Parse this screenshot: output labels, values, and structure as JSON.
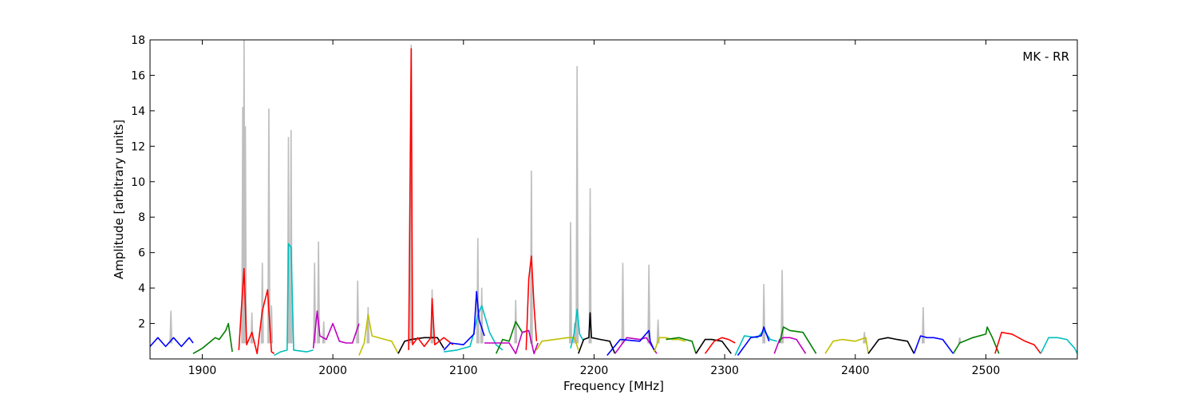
{
  "chart_data": {
    "type": "line",
    "title": "",
    "annotation": "MK - RR",
    "annotation_placement": "top-right",
    "xlabel": "Frequency [MHz]",
    "ylabel": "Amplitude [arbitrary units]",
    "xlim": [
      1860,
      2570
    ],
    "ylim": [
      0,
      18
    ],
    "xticks": [
      1900,
      2000,
      2100,
      2200,
      2300,
      2400,
      2500
    ],
    "yticks": [
      2,
      4,
      6,
      8,
      10,
      12,
      14,
      16,
      18
    ],
    "grid": false,
    "background_series": {
      "color": "#bfbfbf",
      "spikes": [
        {
          "x": 1876,
          "y": 2.7
        },
        {
          "x": 1931,
          "y": 14.2
        },
        {
          "x": 1932,
          "y": 18.0
        },
        {
          "x": 1933,
          "y": 13.1
        },
        {
          "x": 1938,
          "y": 2.6
        },
        {
          "x": 1946,
          "y": 5.4
        },
        {
          "x": 1951,
          "y": 14.1
        },
        {
          "x": 1953,
          "y": 3.0
        },
        {
          "x": 1966,
          "y": 12.5
        },
        {
          "x": 1968,
          "y": 12.9
        },
        {
          "x": 1986,
          "y": 5.4
        },
        {
          "x": 1989,
          "y": 6.6
        },
        {
          "x": 1993,
          "y": 2.1
        },
        {
          "x": 2019,
          "y": 4.4
        },
        {
          "x": 2027,
          "y": 2.9
        },
        {
          "x": 2060,
          "y": 17.7
        },
        {
          "x": 2076,
          "y": 3.9
        },
        {
          "x": 2111,
          "y": 6.8
        },
        {
          "x": 2114,
          "y": 4.0
        },
        {
          "x": 2140,
          "y": 3.3
        },
        {
          "x": 2152,
          "y": 10.6
        },
        {
          "x": 2182,
          "y": 7.7
        },
        {
          "x": 2185,
          "y": 2.0
        },
        {
          "x": 2187,
          "y": 16.5
        },
        {
          "x": 2197,
          "y": 9.6
        },
        {
          "x": 2222,
          "y": 5.4
        },
        {
          "x": 2242,
          "y": 5.3
        },
        {
          "x": 2249,
          "y": 2.2
        },
        {
          "x": 2330,
          "y": 4.2
        },
        {
          "x": 2344,
          "y": 5.0
        },
        {
          "x": 2407,
          "y": 1.5
        },
        {
          "x": 2452,
          "y": 2.9
        },
        {
          "x": 2480,
          "y": 1.2
        }
      ]
    },
    "series": [
      {
        "color": "#0000ff",
        "x": [
          1860,
          1866,
          1872,
          1878,
          1884,
          1890,
          1893
        ],
        "y": [
          0.7,
          1.2,
          0.7,
          1.2,
          0.7,
          1.2,
          0.9
        ]
      },
      {
        "color": "#008000",
        "x": [
          1893,
          1900,
          1905,
          1910,
          1913,
          1918,
          1920,
          1923
        ],
        "y": [
          0.3,
          0.6,
          0.9,
          1.2,
          1.1,
          1.6,
          2.0,
          0.4
        ]
      },
      {
        "color": "#ff0000",
        "x": [
          1928,
          1930,
          1932,
          1934,
          1938,
          1942,
          1946,
          1950,
          1953,
          1955
        ],
        "y": [
          0.5,
          2.9,
          5.1,
          0.8,
          1.5,
          0.3,
          2.7,
          3.9,
          0.4,
          0.3
        ]
      },
      {
        "color": "#00bfbf",
        "x": [
          1955,
          1960,
          1965,
          1966,
          1968,
          1970,
          1980,
          1985
        ],
        "y": [
          0.2,
          0.4,
          0.5,
          6.5,
          6.3,
          0.5,
          0.4,
          0.5
        ]
      },
      {
        "color": "#bf00bf",
        "x": [
          1985,
          1988,
          1990,
          1995,
          2000,
          2005,
          2010,
          2015,
          2020
        ],
        "y": [
          0.6,
          2.7,
          1.3,
          1.1,
          2.0,
          1.0,
          0.9,
          0.9,
          2.0
        ]
      },
      {
        "color": "#bfbf00",
        "x": [
          2020,
          2024,
          2027,
          2030,
          2040,
          2045,
          2050
        ],
        "y": [
          0.2,
          0.9,
          2.5,
          1.3,
          1.1,
          1.0,
          0.3
        ]
      },
      {
        "color": "#000000",
        "x": [
          2050,
          2055,
          2060,
          2070,
          2080,
          2085
        ],
        "y": [
          0.3,
          1.0,
          1.1,
          1.2,
          1.2,
          0.6
        ]
      },
      {
        "color": "#ff0000",
        "x": [
          2058,
          2060,
          2061,
          2065,
          2070,
          2075,
          2076,
          2078,
          2085,
          2092
        ],
        "y": [
          0.5,
          17.5,
          0.8,
          1.2,
          0.7,
          1.2,
          3.4,
          0.8,
          1.2,
          0.8
        ]
      },
      {
        "color": "#00bfbf",
        "x": [
          2085,
          2095,
          2105,
          2108,
          2111,
          2114,
          2120,
          2125,
          2130
        ],
        "y": [
          0.4,
          0.5,
          0.7,
          1.5,
          2.5,
          3.0,
          1.5,
          0.8,
          0.5
        ]
      },
      {
        "color": "#0000ff",
        "x": [
          2085,
          2090,
          2100,
          2108,
          2110,
          2112,
          2116
        ],
        "y": [
          0.5,
          0.9,
          0.8,
          1.4,
          3.8,
          2.2,
          1.3
        ]
      },
      {
        "color": "#008000",
        "x": [
          2125,
          2130,
          2135,
          2140,
          2145,
          2150
        ],
        "y": [
          0.3,
          1.1,
          1.0,
          2.1,
          1.5,
          1.6
        ]
      },
      {
        "color": "#bf00bf",
        "x": [
          2116,
          2125,
          2135,
          2140,
          2145,
          2150,
          2154,
          2157
        ],
        "y": [
          0.9,
          0.9,
          0.9,
          0.3,
          1.5,
          1.6,
          0.3,
          0.9
        ]
      },
      {
        "color": "#ff0000",
        "x": [
          2148,
          2150,
          2152,
          2154,
          2156
        ],
        "y": [
          0.5,
          4.5,
          5.8,
          3.0,
          1.0
        ]
      },
      {
        "color": "#bfbf00",
        "x": [
          2156,
          2160,
          2170,
          2180,
          2185,
          2188
        ],
        "y": [
          0.5,
          1.0,
          1.1,
          1.2,
          1.2,
          0.5
        ]
      },
      {
        "color": "#00bfbf",
        "x": [
          2182,
          2185,
          2187,
          2189,
          2192
        ],
        "y": [
          0.6,
          1.5,
          2.8,
          1.4,
          1.0
        ]
      },
      {
        "color": "#000000",
        "x": [
          2188,
          2192,
          2196,
          2197,
          2198,
          2205,
          2212,
          2216
        ],
        "y": [
          0.3,
          1.1,
          1.2,
          2.6,
          1.2,
          1.1,
          1.0,
          0.3
        ]
      },
      {
        "color": "#bf00bf",
        "x": [
          2216,
          2225,
          2235,
          2240,
          2248
        ],
        "y": [
          0.3,
          1.2,
          1.1,
          1.2,
          0.3
        ]
      },
      {
        "color": "#0000ff",
        "x": [
          2210,
          2220,
          2235,
          2242,
          2243,
          2246
        ],
        "y": [
          0.2,
          1.1,
          1.0,
          1.6,
          1.0,
          0.5
        ]
      },
      {
        "color": "#bfbf00",
        "x": [
          2246,
          2250,
          2255,
          2260,
          2265,
          2270
        ],
        "y": [
          0.4,
          1.2,
          1.2,
          1.1,
          1.1,
          1.0
        ]
      },
      {
        "color": "#008000",
        "x": [
          2255,
          2265,
          2270,
          2275,
          2278
        ],
        "y": [
          1.1,
          1.2,
          1.1,
          1.0,
          0.3
        ]
      },
      {
        "color": "#000000",
        "x": [
          2278,
          2285,
          2290,
          2298,
          2305
        ],
        "y": [
          0.3,
          1.1,
          1.1,
          1.0,
          0.3
        ]
      },
      {
        "color": "#ff0000",
        "x": [
          2285,
          2292,
          2298,
          2303,
          2308
        ],
        "y": [
          0.3,
          1.0,
          1.2,
          1.1,
          0.9
        ]
      },
      {
        "color": "#00bfbf",
        "x": [
          2308,
          2315,
          2325,
          2330,
          2335,
          2340
        ],
        "y": [
          0.2,
          1.3,
          1.2,
          1.6,
          1.1,
          1.0
        ]
      },
      {
        "color": "#0000ff",
        "x": [
          2310,
          2320,
          2328,
          2330,
          2334
        ],
        "y": [
          0.2,
          1.2,
          1.3,
          1.8,
          1.0
        ]
      },
      {
        "color": "#bf00bf",
        "x": [
          2338,
          2342,
          2345,
          2350,
          2355,
          2362
        ],
        "y": [
          0.3,
          1.1,
          1.2,
          1.2,
          1.1,
          0.3
        ]
      },
      {
        "color": "#008000",
        "x": [
          2342,
          2345,
          2350,
          2360,
          2370
        ],
        "y": [
          0.9,
          1.8,
          1.6,
          1.5,
          0.3
        ]
      },
      {
        "color": "#bfbf00",
        "x": [
          2377,
          2383,
          2390,
          2400,
          2408,
          2410
        ],
        "y": [
          0.3,
          1.0,
          1.1,
          1.0,
          1.2,
          0.3
        ]
      },
      {
        "color": "#000000",
        "x": [
          2410,
          2418,
          2425,
          2432,
          2440,
          2445
        ],
        "y": [
          0.3,
          1.1,
          1.2,
          1.1,
          1.0,
          0.3
        ]
      },
      {
        "color": "#0000ff",
        "x": [
          2445,
          2450,
          2455,
          2460,
          2467,
          2475
        ],
        "y": [
          0.3,
          1.3,
          1.2,
          1.2,
          1.1,
          0.3
        ]
      },
      {
        "color": "#008000",
        "x": [
          2475,
          2480,
          2490,
          2500,
          2501,
          2505,
          2510
        ],
        "y": [
          0.3,
          0.9,
          1.2,
          1.4,
          1.8,
          1.2,
          0.3
        ]
      },
      {
        "color": "#ff0000",
        "x": [
          2507,
          2512,
          2520,
          2530,
          2537,
          2542
        ],
        "y": [
          0.3,
          1.5,
          1.4,
          1.0,
          0.8,
          0.3
        ]
      },
      {
        "color": "#00bfbf",
        "x": [
          2542,
          2548,
          2555,
          2562,
          2568,
          2570
        ],
        "y": [
          0.3,
          1.2,
          1.2,
          1.1,
          0.6,
          0.3
        ]
      }
    ]
  }
}
